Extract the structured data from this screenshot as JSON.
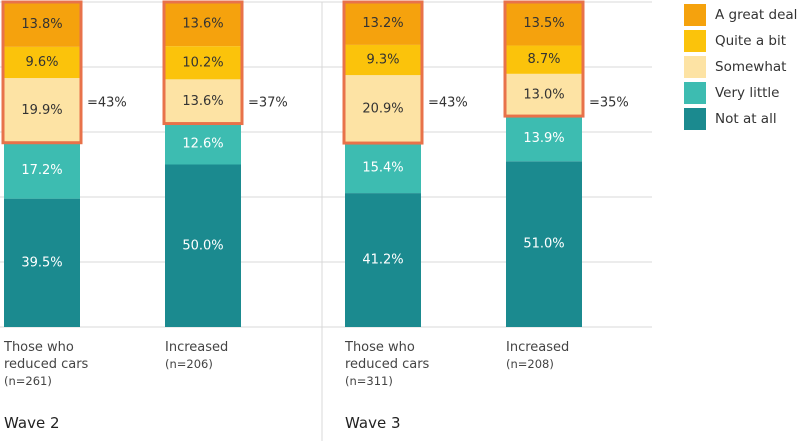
{
  "chart_data": {
    "type": "bar",
    "stacked": true,
    "ylim": [
      0,
      100
    ],
    "grid": true,
    "legend_position": "top-right",
    "series": [
      {
        "name": "Not at all",
        "color": "#1b8a8f",
        "label_color": "#ffffff",
        "values": [
          39.5,
          50.0,
          41.2,
          51.0
        ]
      },
      {
        "name": "Very little",
        "color": "#3dbcb1",
        "label_color": "#ffffff",
        "values": [
          17.2,
          12.6,
          15.4,
          13.9
        ]
      },
      {
        "name": "Somewhat",
        "color": "#fde3a4",
        "label_color": "#333333",
        "values": [
          19.9,
          13.6,
          20.9,
          13.0
        ]
      },
      {
        "name": "Quite a bit",
        "color": "#fbc30b",
        "label_color": "#333333",
        "values": [
          9.6,
          10.2,
          9.3,
          8.7
        ]
      },
      {
        "name": "A great deal",
        "color": "#f5a20d",
        "label_color": "#333333",
        "values": [
          13.8,
          13.6,
          13.2,
          13.5
        ]
      }
    ],
    "value_labels": [
      [
        "39.5%",
        "17.2%",
        "19.9%",
        "9.6%",
        "13.8%"
      ],
      [
        "50.0%",
        "12.6%",
        "13.6%",
        "10.2%",
        "13.6%"
      ],
      [
        "41.2%",
        "15.4%",
        "20.9%",
        "9.3%",
        "13.2%"
      ],
      [
        "51.0%",
        "13.9%",
        "13.0%",
        "8.7%",
        "13.5%"
      ]
    ],
    "highlight_totals": [
      "=43%",
      "=37%",
      "=43%",
      "=35%"
    ],
    "highlight_color": "#e8724a",
    "categories": [
      {
        "lines": [
          "Those who",
          "reduced cars"
        ],
        "n": "(n=261)",
        "group": "Wave 2"
      },
      {
        "lines": [
          "Increased"
        ],
        "n": "(n=206)",
        "group": "Wave 2"
      },
      {
        "lines": [
          "Those who",
          "reduced cars"
        ],
        "n": "(n=311)",
        "group": "Wave 3"
      },
      {
        "lines": [
          "Increased"
        ],
        "n": "(n=208)",
        "group": "Wave 3"
      }
    ],
    "groups": [
      "Wave 2",
      "Wave 3"
    ],
    "legend": [
      "A great deal",
      "Quite a bit",
      "Somewhat",
      "Very little",
      "Not at all"
    ]
  }
}
